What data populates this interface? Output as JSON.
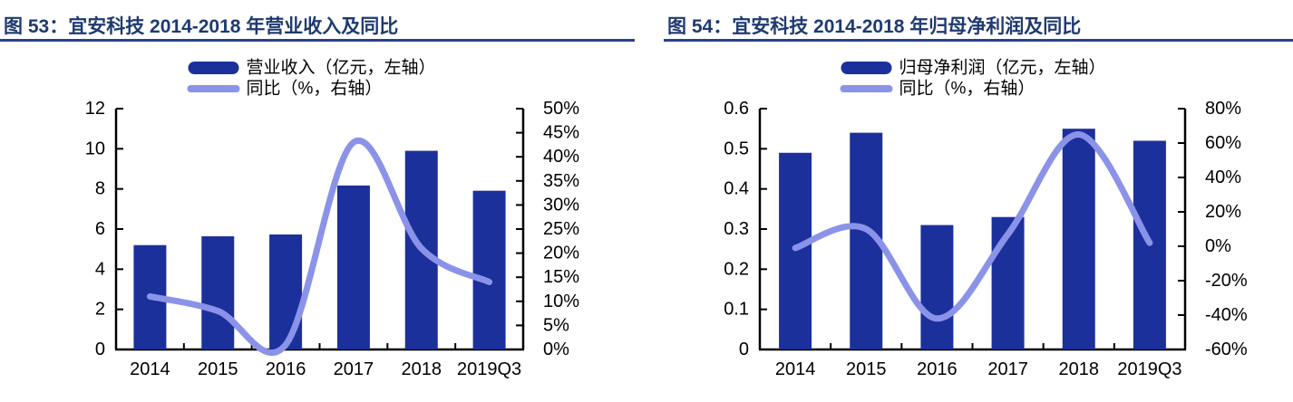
{
  "colors": {
    "bar": "#1c309c",
    "line": "#8a93e8",
    "title_text": "#1f3a70",
    "title_rule": "#27418f",
    "axis": "#000000",
    "tick_label": "#000000"
  },
  "chart_data": [
    {
      "type": "bar+line combo",
      "title": "图 53：宜安科技 2014-2018 年营业收入及同比",
      "categories": [
        "2014",
        "2015",
        "2016",
        "2017",
        "2018",
        "2019Q3"
      ],
      "series": [
        {
          "name": "营业收入（亿元，左轴）",
          "type": "bar",
          "axis": "left",
          "values": [
            5.2,
            5.64,
            5.73,
            8.17,
            9.9,
            7.91
          ]
        },
        {
          "name": "同比（%，右轴）",
          "type": "line",
          "axis": "right",
          "values": [
            11,
            8,
            1,
            43,
            21,
            14
          ]
        }
      ],
      "left_axis": {
        "min": 0,
        "max": 12,
        "tick_labels": [
          "12",
          "10",
          "8",
          "6",
          "4",
          "2",
          "0"
        ]
      },
      "right_axis": {
        "min": 0,
        "max": 50,
        "tick_labels": [
          "50%",
          "45%",
          "40%",
          "35%",
          "30%",
          "25%",
          "20%",
          "15%",
          "10%",
          "5%",
          "0%"
        ]
      },
      "legend_position": "top-center",
      "grid": false
    },
    {
      "type": "bar+line combo",
      "title": "图 54：宜安科技 2014-2018 年归母净利润及同比",
      "categories": [
        "2014",
        "2015",
        "2016",
        "2017",
        "2018",
        "2019Q3"
      ],
      "series": [
        {
          "name": "归母净利润（亿元，左轴）",
          "type": "bar",
          "axis": "left",
          "values": [
            0.49,
            0.54,
            0.31,
            0.33,
            0.55,
            0.52
          ]
        },
        {
          "name": "同比（%，右轴）",
          "type": "line",
          "axis": "right",
          "values": [
            -1,
            10,
            -42,
            7,
            65,
            2
          ]
        }
      ],
      "left_axis": {
        "min": 0,
        "max": 0.6,
        "tick_labels": [
          "0.6",
          "0.5",
          "0.4",
          "0.3",
          "0.2",
          "0.1",
          "0"
        ]
      },
      "right_axis": {
        "min": -60,
        "max": 80,
        "tick_labels": [
          "80%",
          "60%",
          "40%",
          "20%",
          "0%",
          "-20%",
          "-40%",
          "-60%"
        ]
      },
      "legend_position": "top-center",
      "grid": false
    }
  ]
}
